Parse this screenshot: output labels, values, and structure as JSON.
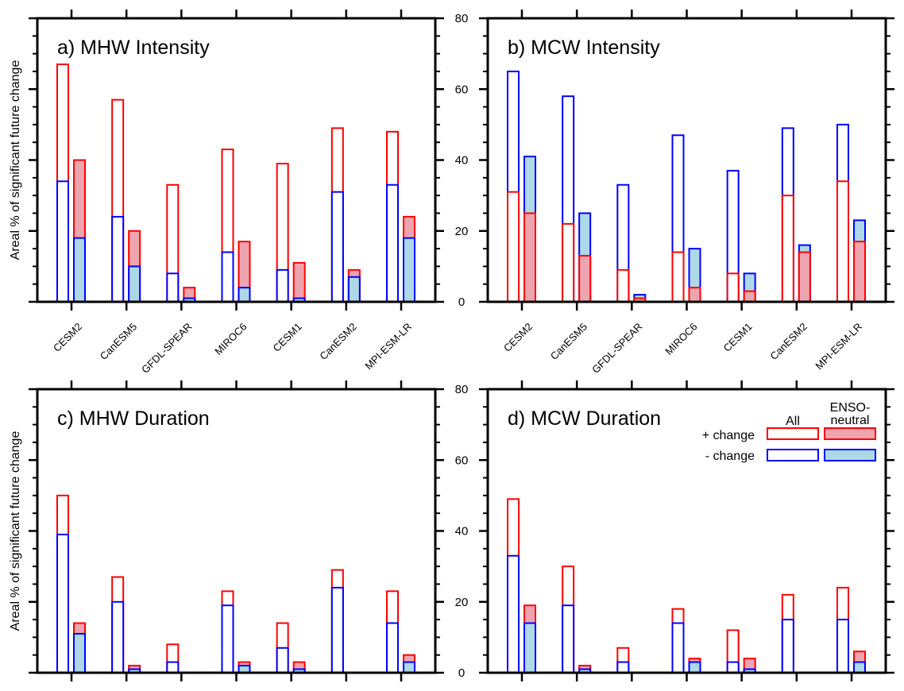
{
  "colors": {
    "pos": "#ff0000",
    "neg": "#0000ff",
    "pos_fill": "#eea4ae",
    "neg_fill": "#add8e6"
  },
  "chart_data": {
    "type": "bar",
    "ylabel": "Areal % of significant future change",
    "ylim": [
      0,
      80
    ],
    "yticks": [
      0,
      20,
      40,
      60,
      80
    ],
    "categories": [
      "CESM2",
      "CanESM5",
      "GFDL-SPEAR",
      "MIROC6",
      "CESM1",
      "CanESM2",
      "MPI-ESM-LR"
    ],
    "legend": {
      "placement": "top-right of panel d",
      "col_all": "All",
      "col_enso_1": "ENSO-",
      "col_enso_2": "neutral",
      "row_pos": "+ change",
      "row_neg": "- change"
    },
    "panels": [
      {
        "id": "a",
        "title": "a) MHW Intensity",
        "series": [
          {
            "name": "All + change",
            "values": [
              67,
              57,
              33,
              43,
              39,
              49,
              48
            ]
          },
          {
            "name": "All - change",
            "values": [
              34,
              24,
              8,
              14,
              9,
              31,
              33
            ]
          },
          {
            "name": "ENSO-neutral + change",
            "values": [
              40,
              20,
              4,
              17,
              11,
              9,
              24
            ]
          },
          {
            "name": "ENSO-neutral - change",
            "values": [
              18,
              10,
              1,
              4,
              1,
              7,
              18
            ]
          }
        ]
      },
      {
        "id": "b",
        "title": "b) MCW Intensity",
        "series": [
          {
            "name": "All + change",
            "values": [
              31,
              22,
              9,
              14,
              8,
              30,
              34
            ]
          },
          {
            "name": "All - change",
            "values": [
              65,
              58,
              33,
              47,
              37,
              49,
              50
            ]
          },
          {
            "name": "ENSO-neutral + change",
            "values": [
              25,
              13,
              1,
              4,
              3,
              14,
              17
            ]
          },
          {
            "name": "ENSO-neutral - change",
            "values": [
              41,
              25,
              2,
              15,
              8,
              16,
              23
            ]
          }
        ]
      },
      {
        "id": "c",
        "title": "c) MHW Duration",
        "series": [
          {
            "name": "All + change",
            "values": [
              50,
              27,
              8,
              23,
              14,
              29,
              23
            ]
          },
          {
            "name": "All - change",
            "values": [
              39,
              20,
              3,
              19,
              7,
              24,
              14
            ]
          },
          {
            "name": "ENSO-neutral + change",
            "values": [
              14,
              2,
              0,
              3,
              3,
              0,
              5
            ]
          },
          {
            "name": "ENSO-neutral - change",
            "values": [
              11,
              1,
              0,
              2,
              1,
              0,
              3
            ]
          }
        ]
      },
      {
        "id": "d",
        "title": "d) MCW Duration",
        "series": [
          {
            "name": "All + change",
            "values": [
              49,
              30,
              7,
              18,
              12,
              22,
              24
            ]
          },
          {
            "name": "All - change",
            "values": [
              33,
              19,
              3,
              14,
              3,
              15,
              15
            ]
          },
          {
            "name": "ENSO-neutral + change",
            "values": [
              19,
              2,
              0,
              4,
              4,
              0,
              6
            ]
          },
          {
            "name": "ENSO-neutral - change",
            "values": [
              14,
              1,
              0,
              3,
              1,
              0,
              3
            ]
          }
        ]
      }
    ]
  }
}
